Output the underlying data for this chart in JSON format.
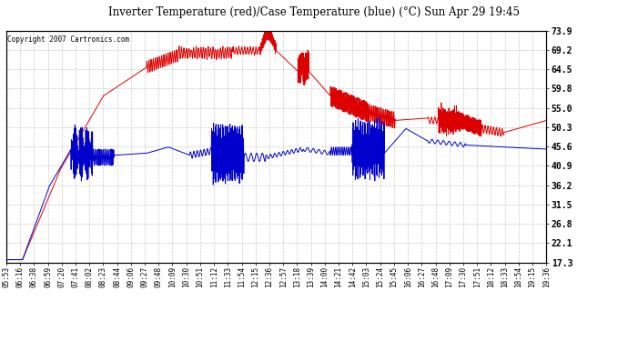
{
  "title": "Inverter Temperature (red)/Case Temperature (blue) (°C) Sun Apr 29 19:45",
  "copyright": "Copyright 2007 Cartronics.com",
  "ylabel_right_ticks": [
    17.3,
    22.1,
    26.8,
    31.5,
    36.2,
    40.9,
    45.6,
    50.3,
    55.0,
    59.8,
    64.5,
    69.2,
    73.9
  ],
  "ymin": 17.3,
  "ymax": 73.9,
  "bg_color": "#ffffff",
  "plot_bg_color": "#ffffff",
  "grid_color": "#bbbbbb",
  "red_color": "#dd0000",
  "blue_color": "#0000cc",
  "x_labels": [
    "05:53",
    "06:16",
    "06:38",
    "06:59",
    "07:20",
    "07:41",
    "08:02",
    "08:23",
    "08:44",
    "09:06",
    "09:27",
    "09:48",
    "10:09",
    "10:30",
    "10:51",
    "11:12",
    "11:33",
    "11:54",
    "12:15",
    "12:36",
    "12:57",
    "13:18",
    "13:39",
    "14:00",
    "14:21",
    "14:42",
    "15:03",
    "15:24",
    "15:45",
    "16:06",
    "16:27",
    "16:48",
    "17:09",
    "17:30",
    "17:51",
    "18:12",
    "18:33",
    "18:54",
    "19:15",
    "19:36"
  ]
}
